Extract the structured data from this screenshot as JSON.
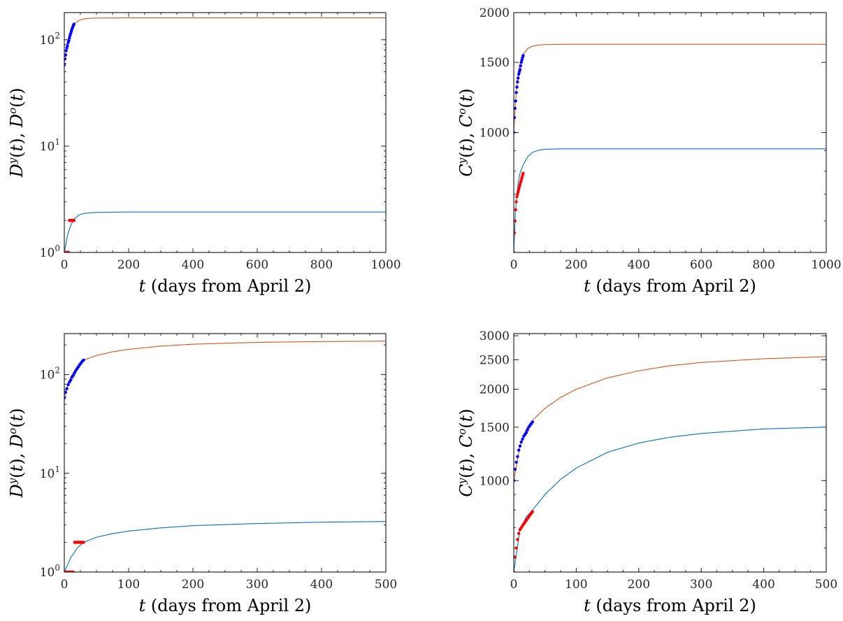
{
  "colors": {
    "model_young": "#0072BD",
    "model_old": "#D95319",
    "data_young": "#FF0000",
    "data_old": "#0000FF",
    "axes": "#262626"
  },
  "chart_data": [
    {
      "id": "top-left",
      "type": "line",
      "scale_y": "log",
      "xlim": [
        0,
        1000
      ],
      "ylim": [
        1,
        180
      ],
      "x_ticks": [
        0,
        200,
        400,
        600,
        800,
        1000
      ],
      "y_ticks": [
        1,
        10,
        100
      ],
      "y_tick_labels": [
        {
          "base": "10",
          "exp": "0"
        },
        {
          "base": "10",
          "exp": "1"
        },
        {
          "base": "10",
          "exp": "2"
        }
      ],
      "xlabel": "t (days from April 2)",
      "ylabel": "D^y(t), D^o(t)",
      "series": [
        {
          "kind": "line",
          "color_key": "model_old",
          "x": [
            0,
            10,
            20,
            30,
            45,
            60,
            80,
            100,
            200,
            500,
            1000
          ],
          "y": [
            60,
            95,
            125,
            140,
            152,
            157,
            159,
            160,
            160.5,
            160.5,
            160.5
          ]
        },
        {
          "kind": "line",
          "color_key": "model_young",
          "x": [
            0,
            10,
            20,
            30,
            45,
            60,
            80,
            100,
            200,
            500,
            1000
          ],
          "y": [
            1,
            1.45,
            1.8,
            2.05,
            2.25,
            2.32,
            2.36,
            2.38,
            2.4,
            2.4,
            2.4
          ]
        },
        {
          "kind": "points",
          "color_key": "data_old",
          "x": [
            0,
            2,
            4,
            6,
            8,
            10,
            12,
            14,
            16,
            18,
            20,
            22,
            24,
            26,
            28,
            30
          ],
          "y": [
            58,
            66,
            72,
            79,
            84,
            88,
            94,
            98,
            104,
            110,
            115,
            120,
            126,
            131,
            136,
            140
          ]
        },
        {
          "kind": "points",
          "color_key": "data_young",
          "x": [
            0,
            2,
            4,
            6,
            8,
            10,
            12,
            14,
            16,
            18,
            20,
            22,
            24,
            26,
            28,
            30
          ],
          "y": [
            1,
            1,
            1,
            1,
            1,
            1,
            1,
            1,
            2,
            2,
            2,
            2,
            2,
            2,
            2,
            2
          ]
        }
      ]
    },
    {
      "id": "top-right",
      "type": "line",
      "scale_y": "log",
      "xlim": [
        0,
        1000
      ],
      "ylim": [
        500,
        2000
      ],
      "x_ticks": [
        0,
        200,
        400,
        600,
        800,
        1000
      ],
      "y_ticks": [
        1000,
        1500,
        2000
      ],
      "y_tick_labels": [
        {
          "base": "1000"
        },
        {
          "base": "1500"
        },
        {
          "base": "2000"
        }
      ],
      "xlabel": "t (days from April 2)",
      "ylabel": "C^y(t), C^o(t)",
      "series": [
        {
          "kind": "line",
          "color_key": "model_old",
          "x": [
            0,
            5,
            10,
            15,
            20,
            30,
            45,
            60,
            80,
            100,
            150,
            300,
            1000
          ],
          "y": [
            1000,
            1180,
            1310,
            1420,
            1490,
            1570,
            1625,
            1648,
            1658,
            1662,
            1665,
            1665,
            1665
          ]
        },
        {
          "kind": "line",
          "color_key": "model_young",
          "x": [
            0,
            5,
            10,
            15,
            20,
            30,
            45,
            60,
            80,
            100,
            150,
            300,
            1000
          ],
          "y": [
            500,
            625,
            700,
            755,
            790,
            830,
            870,
            892,
            903,
            908,
            910,
            910,
            910
          ]
        },
        {
          "kind": "points",
          "color_key": "data_old",
          "x": [
            0,
            2,
            4,
            6,
            8,
            10,
            12,
            14,
            16,
            18,
            20,
            22,
            24,
            26,
            28,
            30
          ],
          "y": [
            1000,
            1090,
            1150,
            1200,
            1260,
            1300,
            1340,
            1370,
            1400,
            1420,
            1440,
            1470,
            1500,
            1520,
            1540,
            1560
          ]
        },
        {
          "kind": "points",
          "color_key": "data_young",
          "x": [
            0,
            2,
            4,
            6,
            8,
            10,
            12,
            14,
            16,
            18,
            20,
            22,
            24,
            26,
            28,
            30
          ],
          "y": [
            500,
            560,
            600,
            640,
            670,
            690,
            700,
            710,
            720,
            730,
            740,
            750,
            760,
            770,
            780,
            790
          ]
        }
      ]
    },
    {
      "id": "bottom-left",
      "type": "line",
      "scale_y": "log",
      "xlim": [
        0,
        500
      ],
      "ylim": [
        1,
        260
      ],
      "x_ticks": [
        0,
        100,
        200,
        300,
        400,
        500
      ],
      "y_ticks": [
        1,
        10,
        100
      ],
      "y_tick_labels": [
        {
          "base": "10",
          "exp": "0"
        },
        {
          "base": "10",
          "exp": "1"
        },
        {
          "base": "10",
          "exp": "2"
        }
      ],
      "xlabel": "t (days from April 2)",
      "ylabel": "D^y(t), D^o(t)",
      "series": [
        {
          "kind": "line",
          "color_key": "model_old",
          "x": [
            0,
            10,
            20,
            30,
            50,
            75,
            100,
            150,
            200,
            300,
            400,
            500
          ],
          "y": [
            60,
            95,
            120,
            140,
            156,
            170,
            180,
            194,
            203,
            212,
            216,
            218
          ]
        },
        {
          "kind": "line",
          "color_key": "model_young",
          "x": [
            0,
            10,
            20,
            30,
            50,
            75,
            100,
            150,
            200,
            300,
            400,
            500
          ],
          "y": [
            1,
            1.4,
            1.75,
            2.0,
            2.25,
            2.45,
            2.6,
            2.8,
            2.95,
            3.1,
            3.2,
            3.25
          ]
        },
        {
          "kind": "points",
          "color_key": "data_old",
          "x": [
            0,
            2,
            4,
            6,
            8,
            10,
            12,
            14,
            16,
            18,
            20,
            22,
            24,
            26,
            28,
            30
          ],
          "y": [
            58,
            66,
            72,
            79,
            84,
            88,
            94,
            98,
            104,
            110,
            115,
            120,
            126,
            131,
            136,
            140
          ]
        },
        {
          "kind": "points",
          "color_key": "data_young",
          "x": [
            0,
            2,
            4,
            6,
            8,
            10,
            12,
            14,
            16,
            18,
            20,
            22,
            24,
            26,
            28,
            30
          ],
          "y": [
            1,
            1,
            1,
            1,
            1,
            1,
            1,
            1,
            2,
            2,
            2,
            2,
            2,
            2,
            2,
            2
          ]
        }
      ]
    },
    {
      "id": "bottom-right",
      "type": "line",
      "scale_y": "log",
      "xlim": [
        0,
        500
      ],
      "ylim": [
        500,
        3050
      ],
      "x_ticks": [
        0,
        100,
        200,
        300,
        400,
        500
      ],
      "y_ticks": [
        1000,
        1500,
        2000,
        2500,
        3000
      ],
      "y_tick_labels": [
        {
          "base": "1000"
        },
        {
          "base": "1500"
        },
        {
          "base": "2000"
        },
        {
          "base": "2500"
        },
        {
          "base": "3000"
        }
      ],
      "xlabel": "t (days from April 2)",
      "ylabel": "C^y(t), C^o(t)",
      "series": [
        {
          "kind": "line",
          "color_key": "model_old",
          "x": [
            0,
            10,
            20,
            30,
            50,
            75,
            100,
            150,
            200,
            250,
            300,
            400,
            500
          ],
          "y": [
            1000,
            1300,
            1480,
            1580,
            1730,
            1880,
            2000,
            2180,
            2300,
            2390,
            2450,
            2520,
            2560
          ]
        },
        {
          "kind": "line",
          "color_key": "model_young",
          "x": [
            0,
            10,
            20,
            30,
            50,
            75,
            100,
            150,
            200,
            250,
            300,
            400,
            500
          ],
          "y": [
            500,
            690,
            760,
            800,
            900,
            1010,
            1100,
            1240,
            1330,
            1390,
            1430,
            1480,
            1500
          ]
        },
        {
          "kind": "points",
          "color_key": "data_old",
          "x": [
            0,
            2,
            4,
            6,
            8,
            10,
            12,
            14,
            16,
            18,
            20,
            22,
            24,
            26,
            28,
            30
          ],
          "y": [
            1000,
            1090,
            1150,
            1200,
            1260,
            1300,
            1340,
            1370,
            1400,
            1420,
            1440,
            1470,
            1500,
            1520,
            1540,
            1560
          ]
        },
        {
          "kind": "points",
          "color_key": "data_young",
          "x": [
            0,
            2,
            4,
            6,
            8,
            10,
            12,
            14,
            16,
            18,
            20,
            22,
            24,
            26,
            28,
            30
          ],
          "y": [
            500,
            560,
            600,
            640,
            670,
            690,
            700,
            710,
            720,
            730,
            740,
            750,
            760,
            770,
            780,
            790
          ]
        }
      ]
    }
  ]
}
